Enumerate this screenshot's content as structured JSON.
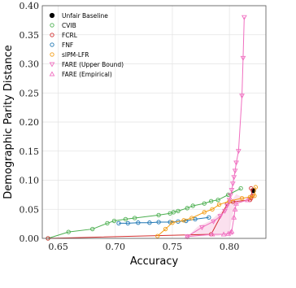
{
  "chart_data": {
    "type": "scatter",
    "xlabel": "Accuracy",
    "ylabel": "Demographic Parity Distance",
    "xlim": [
      0.636,
      0.832
    ],
    "ylim": [
      0.0,
      0.4
    ],
    "xticks": [
      0.65,
      0.7,
      0.75,
      0.8
    ],
    "xtick_labels": [
      "0.65",
      "0.70",
      "0.75",
      "0.80"
    ],
    "yticks": [
      0.0,
      0.05,
      0.1,
      0.15,
      0.2,
      0.25,
      0.3,
      0.35,
      0.4
    ],
    "ytick_labels": [
      "0.00",
      "0.05",
      "0.10",
      "0.15",
      "0.20",
      "0.25",
      "0.30",
      "0.35",
      "0.40"
    ],
    "grid": true,
    "legend_position": "top-left",
    "band": {
      "name": "FARE region",
      "color": "#f7c6e0",
      "lower": [
        [
          0.763,
          0.003
        ],
        [
          0.79,
          0.004
        ],
        [
          0.8,
          0.01
        ],
        [
          0.805,
          0.06
        ],
        [
          0.816,
          0.066
        ]
      ],
      "upper": [
        [
          0.763,
          0.003
        ],
        [
          0.772,
          0.02
        ],
        [
          0.783,
          0.03
        ],
        [
          0.792,
          0.045
        ],
        [
          0.8,
          0.06
        ],
        [
          0.806,
          0.076
        ],
        [
          0.816,
          0.066
        ]
      ]
    },
    "series": [
      {
        "name": "Unfair Baseline",
        "color": "#000000",
        "marker": "dot",
        "line": false,
        "points": [
          [
            0.821,
            0.082
          ]
        ]
      },
      {
        "name": "CVIB",
        "color": "#4caf50",
        "marker": "circle",
        "line": true,
        "points": [
          [
            0.641,
            0.0
          ],
          [
            0.659,
            0.011
          ],
          [
            0.68,
            0.016
          ],
          [
            0.693,
            0.026
          ],
          [
            0.699,
            0.03
          ],
          [
            0.709,
            0.033
          ],
          [
            0.717,
            0.035
          ],
          [
            0.738,
            0.04
          ],
          [
            0.748,
            0.043
          ],
          [
            0.751,
            0.045
          ],
          [
            0.755,
            0.047
          ],
          [
            0.763,
            0.052
          ],
          [
            0.768,
            0.056
          ],
          [
            0.778,
            0.06
          ],
          [
            0.784,
            0.064
          ],
          [
            0.79,
            0.066
          ],
          [
            0.799,
            0.075
          ],
          [
            0.81,
            0.086
          ]
        ]
      },
      {
        "name": "FCRL",
        "color": "#d32f2f",
        "marker": "circle",
        "line": true,
        "points": [
          [
            0.641,
            0.0
          ],
          [
            0.784,
            0.007
          ],
          [
            0.798,
            0.059
          ],
          [
            0.803,
            0.063
          ],
          [
            0.818,
            0.066
          ],
          [
            0.819,
            0.069
          ],
          [
            0.82,
            0.073
          ],
          [
            0.819,
            0.086
          ]
        ]
      },
      {
        "name": "FNF",
        "color": "#1f77b4",
        "marker": "circle",
        "line": true,
        "points": [
          [
            0.703,
            0.026
          ],
          [
            0.711,
            0.026
          ],
          [
            0.72,
            0.027
          ],
          [
            0.73,
            0.027
          ],
          [
            0.738,
            0.028
          ],
          [
            0.748,
            0.028
          ],
          [
            0.755,
            0.029
          ],
          [
            0.762,
            0.03
          ],
          [
            0.77,
            0.033
          ],
          [
            0.782,
            0.036
          ]
        ]
      },
      {
        "name": "sIPM-LFR",
        "color": "#f39c12",
        "marker": "circle",
        "line": true,
        "points": [
          [
            0.737,
            0.004
          ],
          [
            0.744,
            0.016
          ],
          [
            0.75,
            0.027
          ],
          [
            0.76,
            0.031
          ],
          [
            0.767,
            0.035
          ],
          [
            0.778,
            0.045
          ],
          [
            0.785,
            0.05
          ],
          [
            0.791,
            0.058
          ],
          [
            0.8,
            0.064
          ],
          [
            0.811,
            0.069
          ],
          [
            0.818,
            0.071
          ],
          [
            0.822,
            0.073
          ],
          [
            0.823,
            0.088
          ]
        ]
      },
      {
        "name": "FARE (Upper Bound)",
        "color": "#f06fc0",
        "marker": "triangle-down",
        "line": true,
        "points": [
          [
            0.763,
            0.003
          ],
          [
            0.776,
            0.019
          ],
          [
            0.786,
            0.029
          ],
          [
            0.792,
            0.038
          ],
          [
            0.796,
            0.047
          ],
          [
            0.798,
            0.056
          ],
          [
            0.8,
            0.066
          ],
          [
            0.801,
            0.074
          ],
          [
            0.802,
            0.083
          ],
          [
            0.803,
            0.094
          ],
          [
            0.804,
            0.105
          ],
          [
            0.805,
            0.116
          ],
          [
            0.806,
            0.13
          ],
          [
            0.808,
            0.15
          ],
          [
            0.811,
            0.245
          ],
          [
            0.812,
            0.31
          ],
          [
            0.813,
            0.38
          ]
        ]
      },
      {
        "name": "FARE (Empirical)",
        "color": "#f06fc0",
        "marker": "triangle-up",
        "line": true,
        "points": [
          [
            0.763,
            0.003
          ],
          [
            0.785,
            0.007
          ],
          [
            0.795,
            0.007
          ],
          [
            0.799,
            0.008
          ],
          [
            0.801,
            0.01
          ],
          [
            0.802,
            0.012
          ],
          [
            0.804,
            0.036
          ],
          [
            0.805,
            0.05
          ],
          [
            0.806,
            0.06
          ],
          [
            0.816,
            0.066
          ]
        ]
      }
    ]
  }
}
